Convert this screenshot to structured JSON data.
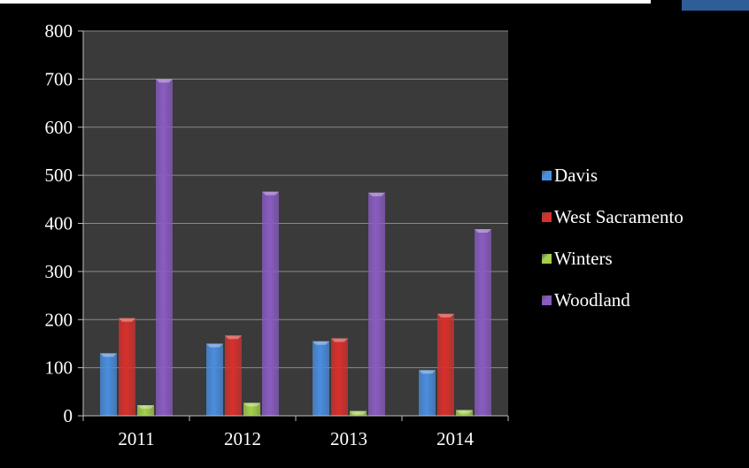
{
  "chart_data": {
    "type": "bar",
    "categories": [
      "2011",
      "2012",
      "2013",
      "2014"
    ],
    "series": [
      {
        "name": "Davis",
        "values": [
          130,
          150,
          155,
          95
        ],
        "color": "#4a8ee0"
      },
      {
        "name": "West Sacramento",
        "values": [
          203,
          167,
          161,
          212
        ],
        "color": "#d9302c"
      },
      {
        "name": "Winters",
        "values": [
          22,
          27,
          10,
          12
        ],
        "color": "#a4d14a"
      },
      {
        "name": "Woodland",
        "values": [
          700,
          466,
          464,
          388
        ],
        "color": "#8a5cc2"
      }
    ],
    "ylim": [
      0,
      800
    ],
    "yticks": [
      "0",
      "100",
      "200",
      "300",
      "400",
      "500",
      "600",
      "700",
      "800"
    ],
    "grid": true,
    "legend_position": "right",
    "title": "",
    "xlabel": "",
    "ylabel": ""
  }
}
